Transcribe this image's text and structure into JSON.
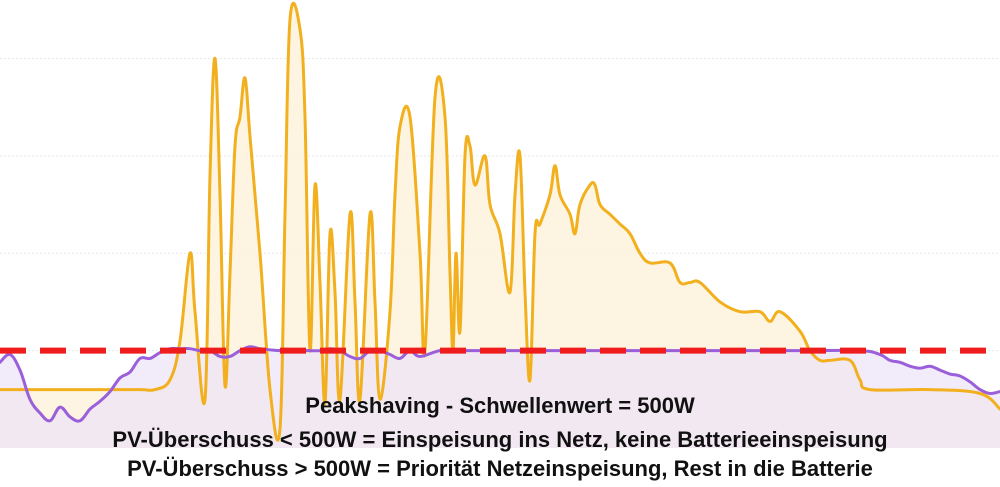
{
  "caption": {
    "line1": "Peakshaving - Schwellenwert = 500W",
    "line2": "PV-Überschuss < 500W = Einspeisung ins Netz, keine Batterieeinspeisung",
    "line3": "PV-Überschuss > 500W = Priorität Netzeinspeisung, Rest in die Batterie"
  },
  "chart_data": {
    "type": "line",
    "title": "",
    "xlabel": "",
    "ylabel": "",
    "xlim": [
      0,
      100
    ],
    "ylim": [
      -200,
      2300
    ],
    "grid": "horizontal",
    "threshold": {
      "value": 500,
      "color": "#ee1c1c",
      "style": "dashed"
    },
    "series": [
      {
        "color": "#f2b01e",
        "fill": "#fdf3dc",
        "x": [
          0,
          1.5,
          3,
          6,
          10,
          14,
          15.5,
          17,
          18,
          19,
          19.5,
          20.5,
          21,
          21.5,
          22,
          22.5,
          23,
          23.5,
          24,
          24.5,
          25,
          26,
          27,
          28,
          28.5,
          29,
          30,
          30.5,
          31,
          31.5,
          32,
          32.5,
          33,
          33.5,
          34,
          35,
          35.5,
          36,
          37,
          37.5,
          38,
          39,
          39.5,
          40,
          41,
          42,
          42.5,
          43.5,
          44.5,
          45,
          45.3,
          45.6,
          46,
          46.5,
          47,
          47.5,
          48.5,
          49,
          50,
          51,
          51.5,
          52,
          52.5,
          53,
          53.5,
          54,
          55,
          55.5,
          56,
          57,
          57.5,
          58,
          59,
          59.5,
          60,
          61,
          62,
          63,
          64,
          65,
          67,
          68,
          69,
          70,
          72,
          74,
          76,
          77,
          78,
          80,
          81,
          82,
          83,
          85,
          86,
          87,
          93,
          98,
          100
        ],
        "y": [
          300,
          300,
          300,
          300,
          300,
          300,
          300,
          350,
          550,
          1000,
          700,
          250,
          1400,
          2000,
          1300,
          320,
          900,
          1550,
          1700,
          1900,
          1600,
          1000,
          300,
          100,
          1200,
          2200,
          2150,
          1700,
          500,
          1350,
          850,
          230,
          1100,
          800,
          250,
          1200,
          750,
          250,
          1200,
          750,
          250,
          700,
          1300,
          1650,
          1700,
          1000,
          500,
          1800,
          1700,
          900,
          500,
          1000,
          600,
          1500,
          1550,
          1350,
          1500,
          1250,
          1100,
          800,
          1300,
          1500,
          800,
          350,
          1100,
          1150,
          1300,
          1450,
          1300,
          1200,
          1100,
          1250,
          1350,
          1350,
          1250,
          1200,
          1150,
          1100,
          1000,
          950,
          950,
          850,
          850,
          850,
          750,
          700,
          700,
          650,
          700,
          600,
          500,
          450,
          450,
          450,
          350,
          300,
          300,
          280,
          200
        ]
      },
      {
        "color": "#9a5fd9",
        "fill": "#ece3f8",
        "x": [
          0,
          1,
          2,
          3,
          4,
          5,
          6,
          7,
          8,
          9,
          10,
          11,
          12,
          13,
          14,
          15,
          16,
          17,
          18,
          19,
          20,
          21,
          22,
          23,
          24,
          25,
          26,
          28,
          30,
          31,
          32,
          33,
          34,
          35,
          36,
          37,
          38,
          39,
          40,
          41,
          42,
          44,
          46,
          48,
          50,
          60,
          70,
          80,
          86,
          88,
          89,
          90,
          91,
          92,
          93,
          94,
          95,
          96,
          97,
          98,
          99,
          100
        ],
        "y": [
          440,
          480,
          400,
          250,
          180,
          140,
          210,
          160,
          140,
          200,
          240,
          290,
          360,
          390,
          460,
          460,
          490,
          510,
          510,
          510,
          500,
          500,
          470,
          470,
          500,
          520,
          510,
          500,
          500,
          500,
          500,
          510,
          500,
          470,
          460,
          500,
          500,
          480,
          460,
          500,
          470,
          500,
          500,
          500,
          500,
          500,
          500,
          500,
          500,
          480,
          450,
          440,
          420,
          410,
          420,
          400,
          380,
          370,
          340,
          300,
          280,
          290
        ]
      }
    ]
  }
}
